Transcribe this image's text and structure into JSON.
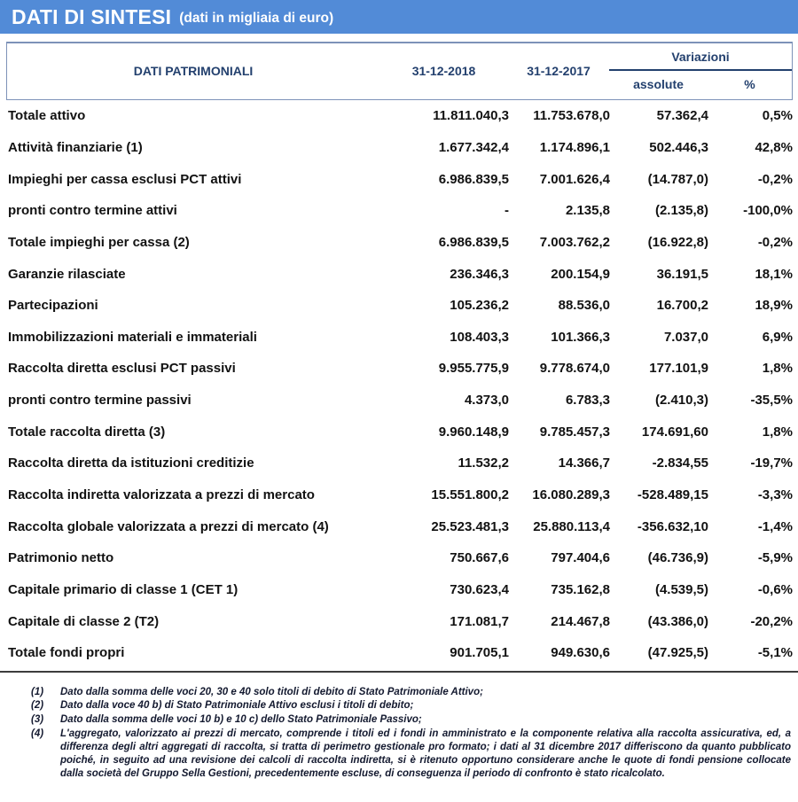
{
  "banner": {
    "title": "DATI DI SINTESI",
    "subtitle": "(dati in migliaia di euro)"
  },
  "table": {
    "header": {
      "col_label": "DATI PATRIMONIALI",
      "col_2018": "31-12-2018",
      "col_2017": "31-12-2017",
      "variazioni": "Variazioni",
      "assolute": "assolute",
      "percent": "%"
    },
    "rows": [
      {
        "label": "Totale attivo",
        "v2018": "11.811.040,3",
        "v2017": "11.753.678,0",
        "abs": "57.362,4",
        "pct": "0,5%"
      },
      {
        "label": "Attività finanziarie (1)",
        "v2018": "1.677.342,4",
        "v2017": "1.174.896,1",
        "abs": "502.446,3",
        "pct": "42,8%"
      },
      {
        "label": "Impieghi per cassa esclusi PCT attivi",
        "v2018": "6.986.839,5",
        "v2017": "7.001.626,4",
        "abs": "(14.787,0)",
        "pct": "-0,2%"
      },
      {
        "label": "pronti contro termine attivi",
        "v2018": "-",
        "v2017": "2.135,8",
        "abs": "(2.135,8)",
        "pct": "-100,0%"
      },
      {
        "label": "Totale impieghi per cassa (2)",
        "v2018": "6.986.839,5",
        "v2017": "7.003.762,2",
        "abs": "(16.922,8)",
        "pct": "-0,2%"
      },
      {
        "label": "Garanzie rilasciate",
        "v2018": "236.346,3",
        "v2017": "200.154,9",
        "abs": "36.191,5",
        "pct": "18,1%"
      },
      {
        "label": "Partecipazioni",
        "v2018": "105.236,2",
        "v2017": "88.536,0",
        "abs": "16.700,2",
        "pct": "18,9%"
      },
      {
        "label": "Immobilizzazioni  materiali e immateriali",
        "v2018": "108.403,3",
        "v2017": "101.366,3",
        "abs": "7.037,0",
        "pct": "6,9%"
      },
      {
        "label": "Raccolta diretta esclusi PCT passivi",
        "v2018": "9.955.775,9",
        "v2017": "9.778.674,0",
        "abs": "177.101,9",
        "pct": "1,8%"
      },
      {
        "label": "pronti contro termine passivi",
        "v2018": "4.373,0",
        "v2017": "6.783,3",
        "abs": "(2.410,3)",
        "pct": "-35,5%"
      },
      {
        "label": "Totale raccolta diretta (3)",
        "v2018": "9.960.148,9",
        "v2017": "9.785.457,3",
        "abs": "174.691,60",
        "pct": "1,8%"
      },
      {
        "label": "Raccolta diretta da istituzioni creditizie",
        "v2018": "11.532,2",
        "v2017": "14.366,7",
        "abs": "-2.834,55",
        "pct": "-19,7%"
      },
      {
        "label": "Raccolta indiretta valorizzata a prezzi di mercato",
        "v2018": "15.551.800,2",
        "v2017": "16.080.289,3",
        "abs": "-528.489,15",
        "pct": "-3,3%"
      },
      {
        "label": "Raccolta globale valorizzata a prezzi di mercato (4)",
        "v2018": "25.523.481,3",
        "v2017": "25.880.113,4",
        "abs": "-356.632,10",
        "pct": "-1,4%"
      },
      {
        "label": "Patrimonio netto",
        "v2018": "750.667,6",
        "v2017": "797.404,6",
        "abs": "(46.736,9)",
        "pct": "-5,9%"
      },
      {
        "label": "Capitale primario di classe 1 (CET 1)",
        "v2018": "730.623,4",
        "v2017": "735.162,8",
        "abs": "(4.539,5)",
        "pct": "-0,6%"
      },
      {
        "label": "Capitale di classe 2 (T2)",
        "v2018": "171.081,7",
        "v2017": "214.467,8",
        "abs": "(43.386,0)",
        "pct": "-20,2%"
      },
      {
        "label": "Totale fondi propri",
        "v2018": "901.705,1",
        "v2017": "949.630,6",
        "abs": "(47.925,5)",
        "pct": "-5,1%"
      }
    ]
  },
  "footnotes": [
    {
      "num": "(1)",
      "text": "Dato dalla somma delle voci 20, 30 e 40 solo titoli di debito di Stato Patrimoniale Attivo;"
    },
    {
      "num": "(2)",
      "text": "Dato dalla voce 40 b) di Stato Patrimoniale Attivo esclusi i titoli di debito;"
    },
    {
      "num": "(3)",
      "text": "Dato dalla somma delle voci 10 b) e 10 c) dello Stato Patrimoniale Passivo;"
    },
    {
      "num": "(4)",
      "text": "L'aggregato, valorizzato ai prezzi di mercato, comprende i titoli ed i fondi in amministrato e la componente relativa alla raccolta assicurativa, ed, a differenza degli altri aggregati di raccolta, si tratta di perimetro gestionale pro formato; i dati al 31 dicembre 2017 differiscono da quanto pubblicato poiché, in seguito ad una revisione dei calcoli di raccolta indiretta, si è ritenuto opportuno considerare anche le quote di fondi pensione collocate dalla società del Gruppo Sella Gestioni, precedentemente escluse, di conseguenza il periodo di confronto è stato ricalcolato."
    }
  ],
  "colors": {
    "banner_background": "#528bd7",
    "header_text": "#23406e",
    "border": "#7d92b8",
    "row_text": "#121212",
    "bottom_rule": "#3c3c3c"
  }
}
